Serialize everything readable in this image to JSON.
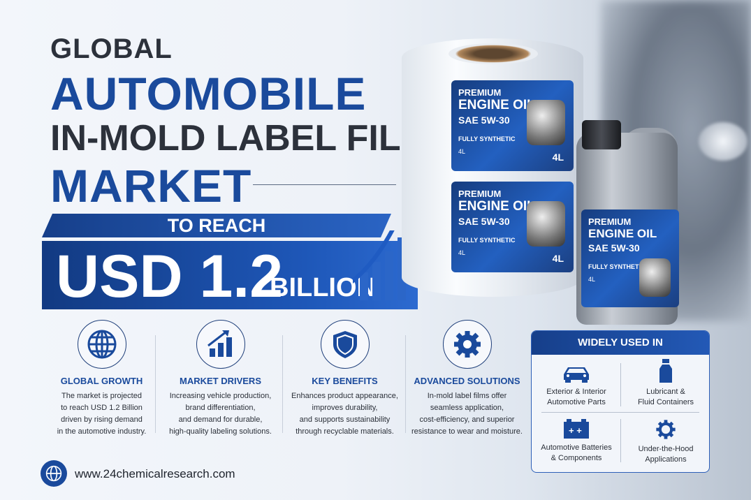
{
  "title": {
    "line1": "GLOBAL",
    "line2": "AUTOMOBILE",
    "line3": "IN-MOLD LABEL FILM",
    "line4": "MARKET"
  },
  "forecast": {
    "lead": "TO REACH",
    "value": "USD 1.2",
    "unit": "BILLION"
  },
  "product_label": {
    "premium": "PREMIUM",
    "name": "ENGINE OIL",
    "grade": "SAE 5W-30",
    "type": "FULLY SYNTHETIC",
    "volume": "4L"
  },
  "features": [
    {
      "icon": "globe-icon",
      "title": "GLOBAL GROWTH",
      "lines": [
        "The market is projected",
        "to reach USD 1.2 Billion",
        "driven by rising demand",
        "in the automotive industry."
      ]
    },
    {
      "icon": "growth-chart-icon",
      "title": "MARKET DRIVERS",
      "lines": [
        "Increasing vehicle production,",
        "brand differentiation,",
        "and demand for durable,",
        "high-quality labeling solutions."
      ]
    },
    {
      "icon": "shield-icon",
      "title": "KEY BENEFITS",
      "lines": [
        "Enhances product appearance,",
        "improves durability,",
        "and supports sustainability",
        "through recyclable materials."
      ]
    },
    {
      "icon": "gear-icon",
      "title": "ADVANCED SOLUTIONS",
      "lines": [
        "In-mold label films offer",
        "seamless application,",
        "cost-efficiency, and superior",
        "resistance to wear and moisture."
      ]
    }
  ],
  "widely_used": {
    "title": "WIDELY USED IN",
    "items": [
      {
        "icon": "car-icon",
        "lines": [
          "Exterior & Interior",
          "Automotive Parts"
        ]
      },
      {
        "icon": "bottle-icon",
        "lines": [
          "Lubricant &",
          "Fluid Containers"
        ]
      },
      {
        "icon": "battery-icon",
        "lines": [
          "Automotive Batteries",
          "& Components"
        ]
      },
      {
        "icon": "gear-icon",
        "lines": [
          "Under-the-Hood",
          "Applications"
        ]
      }
    ]
  },
  "footer": {
    "url": "www.24chemicalresearch.com"
  },
  "colors": {
    "brand_blue": "#1a4a9c",
    "dark_text": "#2c313b"
  }
}
